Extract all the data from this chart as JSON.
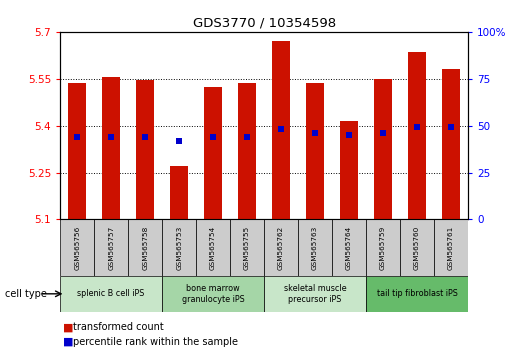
{
  "title": "GDS3770 / 10354598",
  "samples": [
    "GSM565756",
    "GSM565757",
    "GSM565758",
    "GSM565753",
    "GSM565754",
    "GSM565755",
    "GSM565762",
    "GSM565763",
    "GSM565764",
    "GSM565759",
    "GSM565760",
    "GSM565761"
  ],
  "bar_tops": [
    5.535,
    5.555,
    5.545,
    5.27,
    5.525,
    5.538,
    5.67,
    5.535,
    5.415,
    5.55,
    5.635,
    5.58
  ],
  "bar_bottom": 5.1,
  "blue_marker_values": [
    5.365,
    5.365,
    5.365,
    5.35,
    5.365,
    5.365,
    5.388,
    5.375,
    5.37,
    5.375,
    5.395,
    5.395
  ],
  "cell_type_groups": [
    {
      "label": "splenic B cell iPS",
      "start": 0,
      "end": 3,
      "color": "#c8e6c9"
    },
    {
      "label": "bone marrow\ngranulocyte iPS",
      "start": 3,
      "end": 6,
      "color": "#a5d6a7"
    },
    {
      "label": "skeletal muscle\nprecursor iPS",
      "start": 6,
      "end": 9,
      "color": "#c8e6c9"
    },
    {
      "label": "tail tip fibroblast iPS",
      "start": 9,
      "end": 12,
      "color": "#66bb6a"
    }
  ],
  "ylim_left": [
    5.1,
    5.7
  ],
  "ylim_right": [
    0,
    100
  ],
  "yticks_left": [
    5.1,
    5.25,
    5.4,
    5.55,
    5.7
  ],
  "ytick_labels_left": [
    "5.1",
    "5.25",
    "5.4",
    "5.55",
    "5.7"
  ],
  "yticks_right": [
    0,
    25,
    50,
    75,
    100
  ],
  "ytick_labels_right": [
    "0",
    "25",
    "50",
    "75",
    "100%"
  ],
  "bar_color": "#cc1100",
  "blue_color": "#0000cc",
  "grid_color": "#000000",
  "background_color": "#ffffff",
  "legend_labels": [
    "transformed count",
    "percentile rank within the sample"
  ],
  "cell_type_label": "cell type",
  "bar_width": 0.55,
  "sample_box_color": "#cccccc"
}
